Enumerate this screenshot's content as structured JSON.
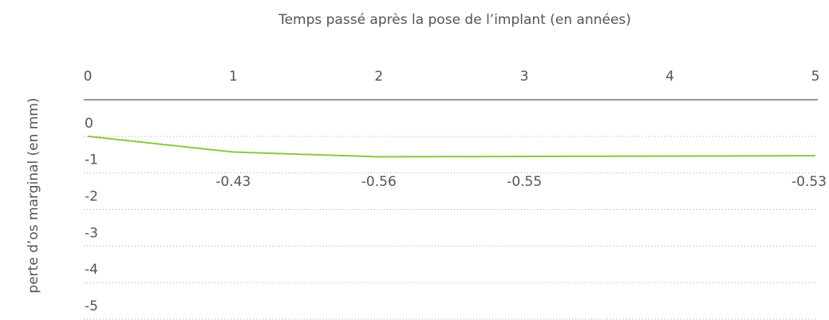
{
  "chart_data": {
    "type": "line",
    "title": "Temps passé après la pose de l’implant (en années)",
    "y_label": "perte d’os marginal (en mm)",
    "x": [
      0,
      1,
      2,
      3,
      5
    ],
    "series": [
      {
        "name": null,
        "color": "#8dc63f",
        "values": [
          0,
          -0.43,
          -0.56,
          -0.55,
          -0.53
        ]
      }
    ],
    "xlim": [
      0,
      5
    ],
    "xticks": [
      0,
      1,
      2,
      3,
      4,
      5
    ],
    "ylim": [
      1,
      -5
    ],
    "yticks": [
      0,
      -1,
      -2,
      -3,
      -4,
      -5
    ],
    "grid": true
  }
}
